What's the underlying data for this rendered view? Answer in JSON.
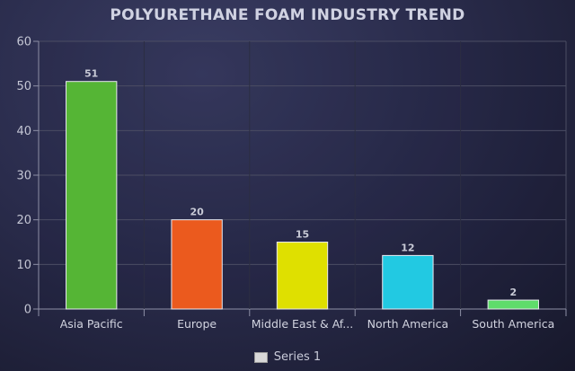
{
  "chart_data": {
    "type": "bar",
    "title": "POLYURETHANE FOAM INDUSTRY TREND",
    "categories": [
      "Asia Pacific",
      "Europe",
      "Middle East & Af...",
      "North America",
      "South America"
    ],
    "series": [
      {
        "name": "Series 1",
        "values": [
          51,
          20,
          15,
          12,
          2
        ],
        "colors": [
          "#55b535",
          "#eb5a1e",
          "#dfe000",
          "#22c9e2",
          "#5fdc6b"
        ]
      }
    ],
    "xlabel": "",
    "ylabel": "",
    "ylim": [
      0,
      60
    ],
    "yticks": [
      0,
      10,
      20,
      30,
      40,
      50,
      60
    ],
    "grid": true,
    "data_labels": [
      "51",
      "20",
      "15",
      "12",
      "2"
    ],
    "legend": {
      "position": "bottom",
      "entries": [
        "Series 1"
      ],
      "swatch_color": "#d8d8d8"
    }
  }
}
